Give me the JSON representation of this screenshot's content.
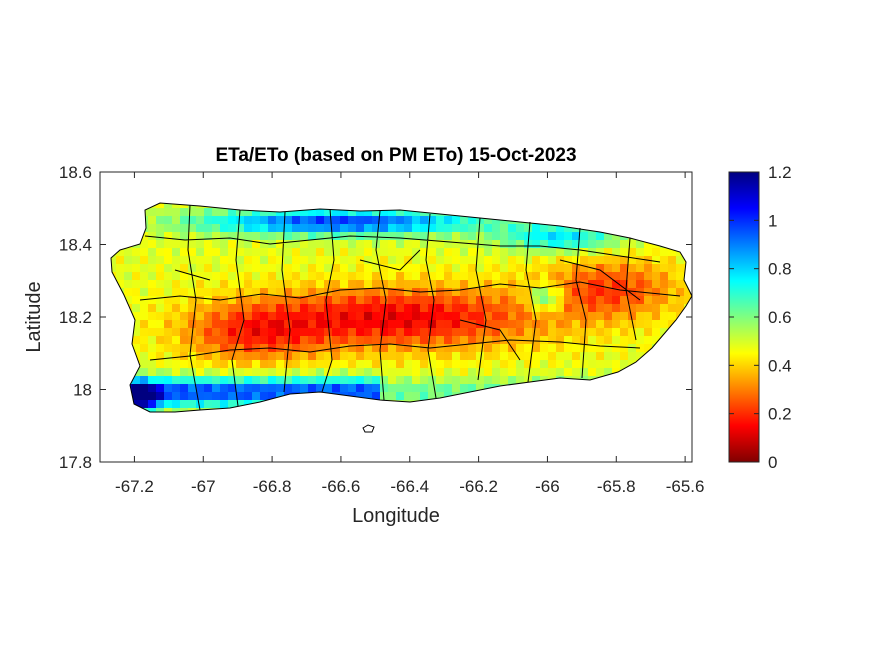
{
  "chart_data": {
    "type": "heatmap",
    "title": "ETa/ETo (based on PM ETo) 15-Oct-2023",
    "xlabel": "Longitude",
    "ylabel": "Latitude",
    "xlim": [
      -67.3,
      -65.58
    ],
    "ylim": [
      17.8,
      18.6
    ],
    "xticks": [
      -67.2,
      -67,
      -66.8,
      -66.6,
      -66.4,
      -66.2,
      -66,
      -65.8,
      -65.6
    ],
    "yticks": [
      17.8,
      18,
      18.2,
      18.4,
      18.6
    ],
    "xtick_labels": [
      "-67.2",
      "-67",
      "-66.8",
      "-66.6",
      "-66.4",
      "-66.2",
      "-66",
      "-65.8",
      "-65.6"
    ],
    "ytick_labels": [
      "17.8",
      "18",
      "18.2",
      "18.4",
      "18.6"
    ],
    "colorbar": {
      "colormap": "jet",
      "range": [
        0,
        1.2
      ],
      "ticks": [
        0,
        0.2,
        0.4,
        0.6,
        0.8,
        1,
        1.2
      ],
      "tick_labels": [
        "0",
        "0.2",
        "0.4",
        "0.6",
        "0.8",
        "1",
        "1.2"
      ],
      "location": "right"
    },
    "grid": false
  }
}
